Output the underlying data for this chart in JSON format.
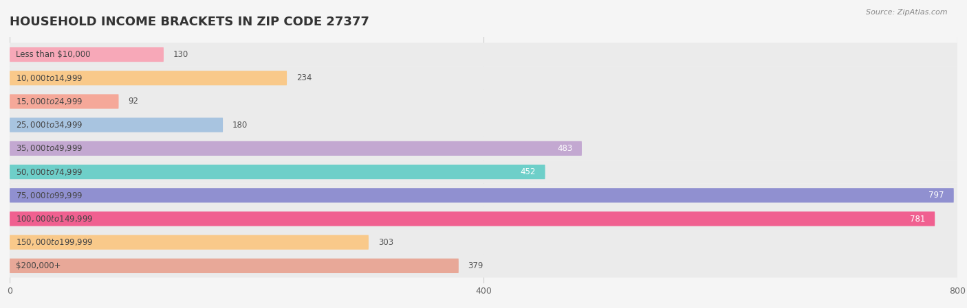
{
  "title": "HOUSEHOLD INCOME BRACKETS IN ZIP CODE 27377",
  "source": "Source: ZipAtlas.com",
  "categories": [
    "Less than $10,000",
    "$10,000 to $14,999",
    "$15,000 to $24,999",
    "$25,000 to $34,999",
    "$35,000 to $49,999",
    "$50,000 to $74,999",
    "$75,000 to $99,999",
    "$100,000 to $149,999",
    "$150,000 to $199,999",
    "$200,000+"
  ],
  "values": [
    130,
    234,
    92,
    180,
    483,
    452,
    797,
    781,
    303,
    379
  ],
  "bar_colors": [
    "#f7a8b8",
    "#f9c98a",
    "#f5a899",
    "#a8c4e0",
    "#c3a8d1",
    "#6ecfc9",
    "#9090d0",
    "#f06090",
    "#f9c98a",
    "#e8a898"
  ],
  "xlim": [
    0,
    800
  ],
  "xticks": [
    0,
    400,
    800
  ],
  "background_color": "#f5f5f5",
  "bar_background_color": "#e8e8e8",
  "title_fontsize": 13,
  "label_fontsize": 8.5,
  "value_fontsize": 8.5,
  "bar_height": 0.62,
  "value_inside_threshold": 400
}
